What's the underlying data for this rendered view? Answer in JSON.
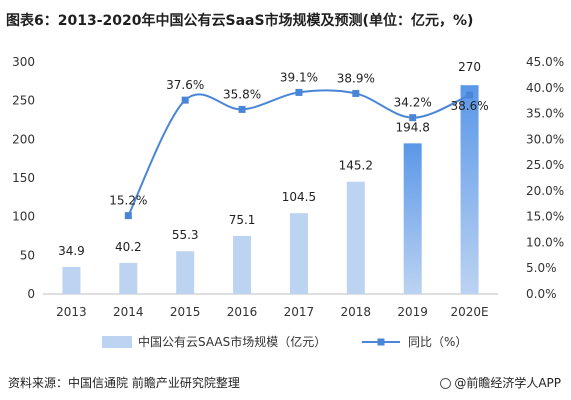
{
  "title": "图表6：2013-2020年中国公有云SaaS市场规模及预测(单位：亿元，%)",
  "source": "资料来源：中国信通院 前瞻产业研究院整理",
  "brand": "@前瞻经济学人APP",
  "colors": {
    "bar": "#bcd3f2",
    "bar_dark": "#5a97e8",
    "line": "#4a86d8"
  },
  "chart_data": {
    "type": "bar",
    "categories": [
      "2013",
      "2014",
      "2015",
      "2016",
      "2017",
      "2018",
      "2019",
      "2020E"
    ],
    "series": [
      {
        "name": "中国公有云SAAS市场规模（亿元）",
        "type": "bar",
        "axis": "left",
        "values": [
          34.9,
          40.2,
          55.3,
          75.1,
          104.5,
          145.2,
          194.8,
          270
        ],
        "labels": [
          "34.9",
          "40.2",
          "55.3",
          "75.1",
          "104.5",
          "145.2",
          "194.8",
          "270"
        ]
      },
      {
        "name": "同比（%）",
        "type": "line",
        "axis": "right",
        "values": [
          null,
          15.2,
          37.6,
          35.8,
          39.1,
          38.9,
          34.2,
          38.6
        ],
        "labels": [
          "",
          "15.2%",
          "37.6%",
          "35.8%",
          "39.1%",
          "38.9%",
          "34.2%",
          "38.6%"
        ]
      }
    ],
    "y_left": {
      "min": 0,
      "max": 300,
      "ticks": [
        "0",
        "50",
        "100",
        "150",
        "200",
        "250",
        "300"
      ]
    },
    "y_right": {
      "min": 0,
      "max": 45,
      "ticks": [
        "0.0%",
        "5.0%",
        "10.0%",
        "15.0%",
        "20.0%",
        "25.0%",
        "30.0%",
        "35.0%",
        "40.0%",
        "45.0%"
      ]
    },
    "grid": false,
    "legend": "bottom"
  }
}
